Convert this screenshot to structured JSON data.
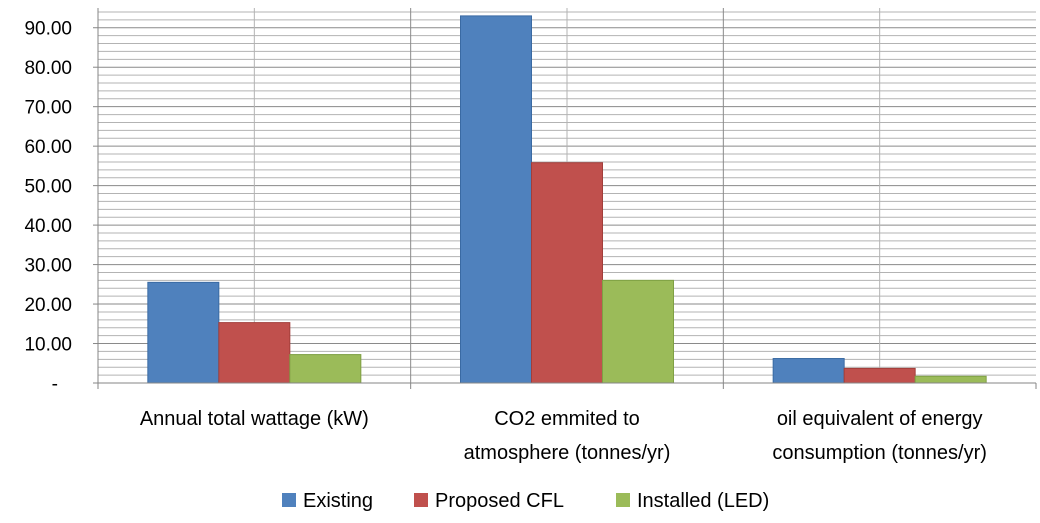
{
  "chart_data": {
    "type": "bar",
    "categories": [
      [
        "Annual total wattage (kW)"
      ],
      [
        "CO2 emmited to",
        "atmosphere (tonnes/yr)"
      ],
      [
        "oil equivalent of energy",
        "consumption (tonnes/yr)"
      ]
    ],
    "series": [
      {
        "name": "Existing",
        "color": "#4F81BD",
        "values": [
          25.5,
          93.0,
          6.2
        ]
      },
      {
        "name": "Proposed CFL",
        "color": "#C0504D",
        "values": [
          15.3,
          55.8,
          3.7
        ]
      },
      {
        "name": "Installed (LED)",
        "color": "#9BBB59",
        "values": [
          7.2,
          26.0,
          1.7
        ]
      }
    ],
    "y_ticks": [
      "-",
      "10.00",
      "20.00",
      "30.00",
      "40.00",
      "50.00",
      "60.00",
      "70.00",
      "80.00",
      "90.00"
    ],
    "ylim": [
      0,
      95
    ],
    "grid": true,
    "legend_position": "bottom"
  }
}
